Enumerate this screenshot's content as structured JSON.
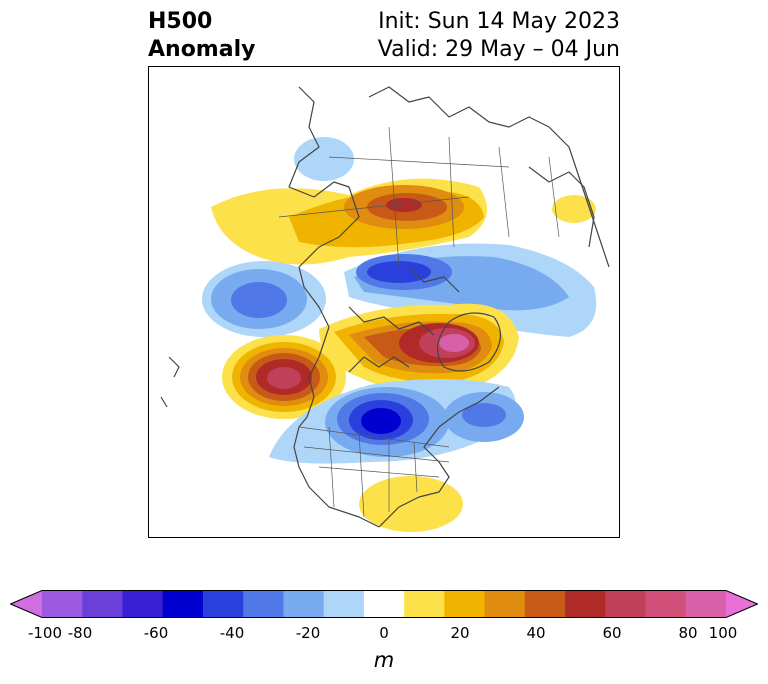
{
  "header": {
    "title_line1": "H500",
    "title_line2": "Anomaly",
    "init_text": "Init: Sun 14 May 2023",
    "valid_text": "Valid: 29 May – 04 Jun"
  },
  "colorbar": {
    "unit": "m",
    "ticks": [
      "-100",
      "-80",
      "-60",
      "-40",
      "-20",
      "0",
      "20",
      "40",
      "60",
      "80",
      "100"
    ],
    "min": -100,
    "max": 100,
    "step": 10,
    "colors": [
      "#d070e0",
      "#9c5ae0",
      "#6a40d8",
      "#3a20d4",
      "#0000d0",
      "#2a40dc",
      "#5078e6",
      "#78aaf0",
      "#aed6f8",
      "#ffffff",
      "#fce14a",
      "#f0b400",
      "#e08c10",
      "#c85a18",
      "#b02a28",
      "#c0405a",
      "#d0507a",
      "#d860a8",
      "#e870d8"
    ]
  },
  "map": {
    "anomaly_centers": [
      {
        "name": "positive-anomaly-greenland-canada",
        "value_m": 90
      },
      {
        "name": "positive-anomaly-northeast-pacific",
        "value_m": 80
      },
      {
        "name": "positive-anomaly-siberia-arctic",
        "value_m": 60
      },
      {
        "name": "negative-anomaly-great-lakes",
        "value_m": -70
      },
      {
        "name": "negative-anomaly-arctic-ocean",
        "value_m": -70
      },
      {
        "name": "negative-anomaly-north-pacific",
        "value_m": -40
      },
      {
        "name": "negative-anomaly-north-atlantic",
        "value_m": -40
      },
      {
        "name": "positive-anomaly-southeast-us",
        "value_m": 20
      }
    ]
  }
}
